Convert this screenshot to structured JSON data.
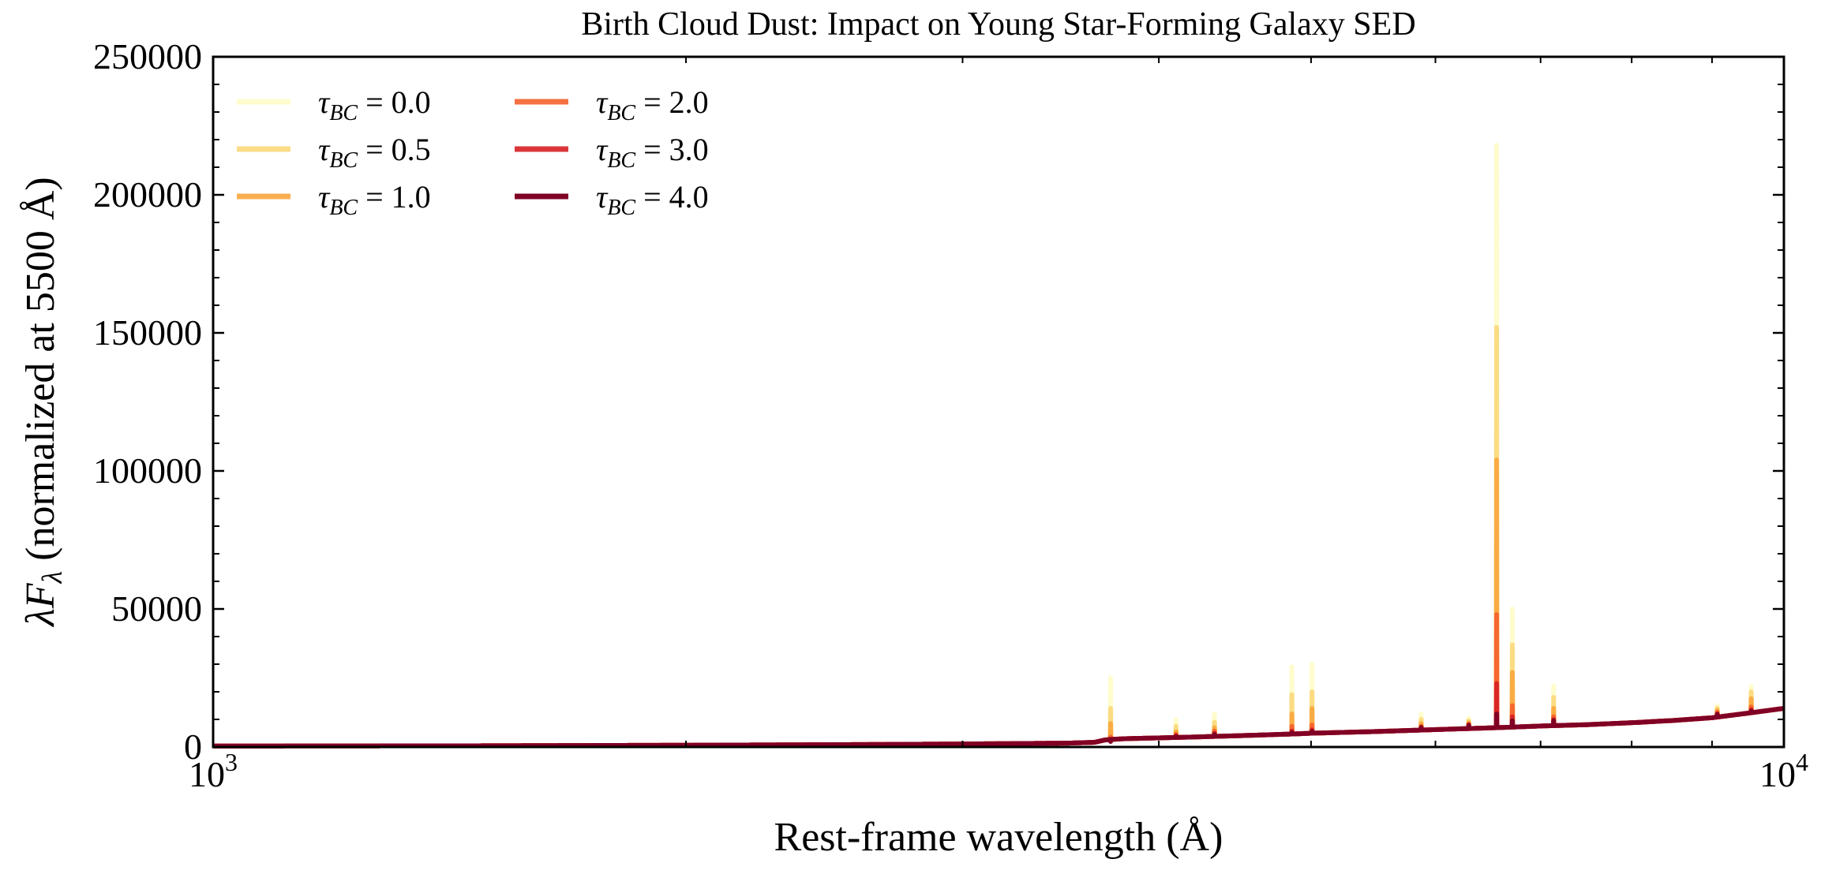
{
  "chart_data": {
    "type": "line",
    "title": "Birth Cloud Dust: Impact on Young Star-Forming Galaxy SED",
    "xlabel": "Rest-frame wavelength (Å)",
    "ylabel_prefix": "λF",
    "ylabel_sub": "λ",
    "ylabel_suffix": " (normalized at 5500 Å)",
    "x_scale": "log",
    "xlim": [
      1000,
      10000
    ],
    "ylim": [
      0,
      250000
    ],
    "x_ticks": [
      {
        "value": 1000,
        "base": "10",
        "exp": "3"
      },
      {
        "value": 10000,
        "base": "10",
        "exp": "4"
      }
    ],
    "y_ticks": [
      {
        "value": 0,
        "label": "0"
      },
      {
        "value": 50000,
        "label": "50000"
      },
      {
        "value": 100000,
        "label": "100000"
      },
      {
        "value": 150000,
        "label": "150000"
      },
      {
        "value": 200000,
        "label": "200000"
      },
      {
        "value": 250000,
        "label": "250000"
      }
    ],
    "grid": false,
    "legend_position": "top-left",
    "legend_columns": 2,
    "continuum": [
      [
        1000,
        350
      ],
      [
        1500,
        450
      ],
      [
        2000,
        650
      ],
      [
        2500,
        850
      ],
      [
        3000,
        1100
      ],
      [
        3500,
        1400
      ],
      [
        3640,
        1700
      ],
      [
        3700,
        2600
      ],
      [
        3800,
        3000
      ],
      [
        4000,
        3300
      ],
      [
        4200,
        3600
      ],
      [
        4500,
        4100
      ],
      [
        4861,
        4700
      ],
      [
        5007,
        5000
      ],
      [
        5500,
        5600
      ],
      [
        6000,
        6300
      ],
      [
        6563,
        7000
      ],
      [
        7000,
        7600
      ],
      [
        7500,
        8100
      ],
      [
        8000,
        8800
      ],
      [
        8500,
        9600
      ],
      [
        9000,
        10600
      ],
      [
        9500,
        12300
      ],
      [
        10000,
        14000
      ]
    ],
    "emission_lines": [
      {
        "wavelength": 3727,
        "fluxes": [
          25000,
          14000,
          8500,
          3600,
          2800,
          2000
        ]
      },
      {
        "wavelength": 4102,
        "fluxes": [
          10000,
          7500,
          5500,
          4600,
          4100,
          3800
        ]
      },
      {
        "wavelength": 4340,
        "fluxes": [
          12000,
          9000,
          7000,
          5800,
          5000,
          4500
        ]
      },
      {
        "wavelength": 4861,
        "fluxes": [
          29000,
          19000,
          12000,
          7500,
          5800,
          5200
        ]
      },
      {
        "wavelength": 5007,
        "fluxes": [
          30000,
          20000,
          14000,
          8000,
          6200,
          5600
        ]
      },
      {
        "wavelength": 5876,
        "fluxes": [
          12000,
          10000,
          8500,
          7500,
          7200,
          7000
        ]
      },
      {
        "wavelength": 6300,
        "fluxes": [
          10500,
          9500,
          8800,
          8300,
          8000,
          7800
        ]
      },
      {
        "wavelength": 6563,
        "fluxes": [
          218000,
          152000,
          104000,
          48000,
          23000,
          12000
        ]
      },
      {
        "wavelength": 6716,
        "fluxes": [
          50000,
          37000,
          27000,
          15000,
          11000,
          9500
        ]
      },
      {
        "wavelength": 7135,
        "fluxes": [
          22000,
          18000,
          14000,
          11000,
          10000,
          9500
        ]
      },
      {
        "wavelength": 9069,
        "fluxes": [
          15000,
          14000,
          13200,
          12500,
          12000,
          11800
        ]
      },
      {
        "wavelength": 9532,
        "fluxes": [
          22000,
          20000,
          17500,
          14500,
          13500,
          13000
        ]
      }
    ],
    "series": [
      {
        "name_symbol": "τ",
        "name_sub": "BC",
        "name_value": " = 0.0",
        "color": "#fffcc8",
        "opacity": 0.9
      },
      {
        "name_symbol": "τ",
        "name_sub": "BC",
        "name_value": " = 0.5",
        "color": "#fbd87a",
        "opacity": 0.9
      },
      {
        "name_symbol": "τ",
        "name_sub": "BC",
        "name_value": " = 1.0",
        "color": "#f9a63d",
        "opacity": 0.9
      },
      {
        "name_symbol": "τ",
        "name_sub": "BC",
        "name_value": " = 2.0",
        "color": "#f4612d",
        "opacity": 0.9
      },
      {
        "name_symbol": "τ",
        "name_sub": "BC",
        "name_value": " = 3.0",
        "color": "#d62023",
        "opacity": 0.9
      },
      {
        "name_symbol": "τ",
        "name_sub": "BC",
        "name_value": " = 4.0",
        "color": "#800026",
        "opacity": 1.0
      }
    ]
  }
}
